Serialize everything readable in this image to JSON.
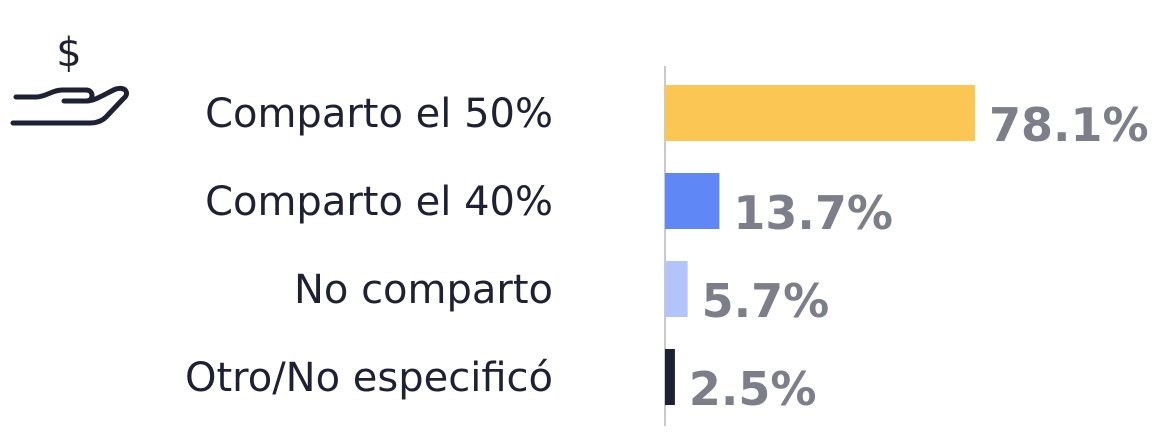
{
  "icon": "hand-holding-dollar-icon",
  "chart_data": {
    "type": "bar",
    "orientation": "horizontal",
    "categories": [
      "Comparto el 50%",
      "Comparto el 40%",
      "No comparto",
      "Otro/No especificó"
    ],
    "values": [
      78.1,
      13.7,
      5.7,
      2.5
    ],
    "value_labels": [
      "78.1%",
      "13.7%",
      "5.7%",
      "2.5%"
    ],
    "colors": [
      "#fcc655",
      "#5f87f5",
      "#b3c4fb",
      "#1e2133"
    ],
    "xlim": [
      0,
      78.1
    ],
    "grid": false,
    "legend": "none"
  }
}
